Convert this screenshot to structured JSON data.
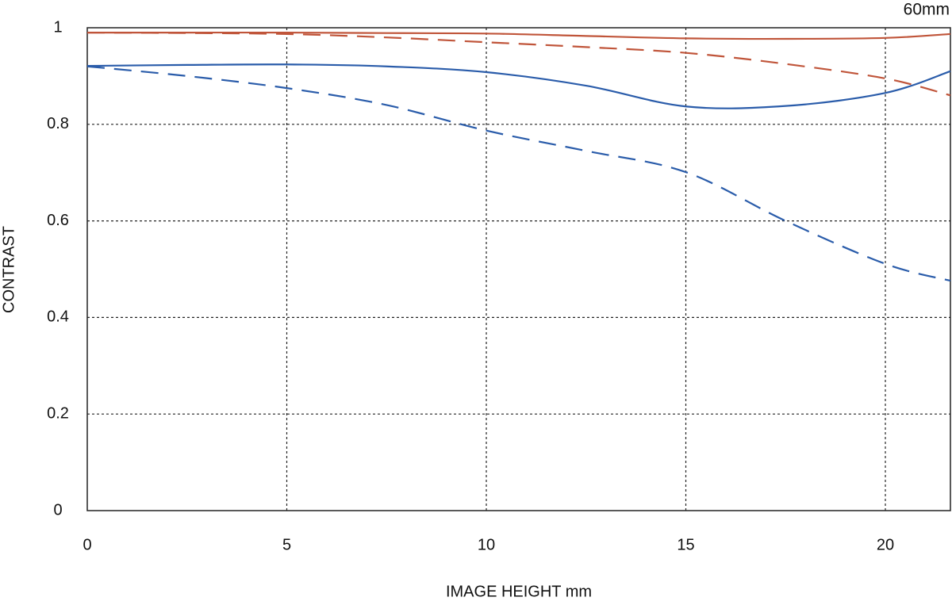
{
  "chart_data": {
    "type": "line",
    "title": "60mm",
    "x_label": "IMAGE HEIGHT  mm",
    "y_label": "CONTRAST",
    "x": [
      0,
      2.5,
      5,
      7.5,
      10,
      12.5,
      15,
      17.5,
      20,
      21.63
    ],
    "series": [
      {
        "color": "#c0553a",
        "style": "solid",
        "values": [
          0.99,
          0.99,
          0.99,
          0.989,
          0.988,
          0.983,
          0.978,
          0.977,
          0.979,
          0.987
        ]
      },
      {
        "color": "#c0553a",
        "style": "dashed",
        "values": [
          0.99,
          0.989,
          0.987,
          0.98,
          0.97,
          0.96,
          0.948,
          0.925,
          0.895,
          0.86
        ]
      },
      {
        "color": "#2a5caa",
        "style": "solid",
        "values": [
          0.921,
          0.923,
          0.924,
          0.92,
          0.908,
          0.88,
          0.837,
          0.838,
          0.865,
          0.91
        ]
      },
      {
        "color": "#2a5caa",
        "style": "dashed",
        "values": [
          0.92,
          0.9,
          0.875,
          0.84,
          0.787,
          0.745,
          0.701,
          0.6,
          0.511,
          0.476
        ]
      }
    ],
    "xlim": [
      0,
      21.63
    ],
    "ylim": [
      0,
      1
    ],
    "xticks": [
      0,
      5,
      10,
      15,
      20
    ],
    "yticks": [
      0,
      0.2,
      0.4,
      0.6,
      0.8,
      1
    ],
    "grid": true
  }
}
